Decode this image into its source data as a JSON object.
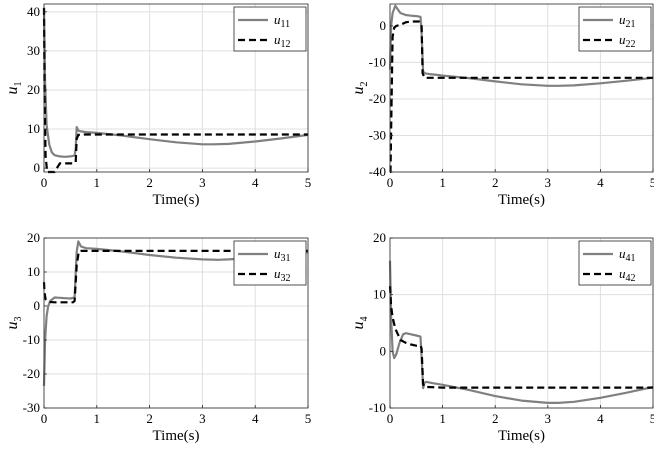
{
  "colors": {
    "solid": "#808080",
    "dashed": "#000000",
    "grid": "#dfdfdf",
    "axis": "#262626"
  },
  "chart_data": [
    {
      "type": "line",
      "title": "",
      "xlabel": "Time(s)",
      "ylabel": {
        "base": "u",
        "sub": "1"
      },
      "xlim": [
        0,
        5
      ],
      "ylim": [
        -1,
        42
      ],
      "xticks": [
        0,
        1,
        2,
        3,
        4,
        5
      ],
      "yticks": [
        0,
        10,
        20,
        30,
        40
      ],
      "grid": true,
      "legend": {
        "position": "top-right"
      },
      "series": [
        {
          "name": "u11",
          "label": {
            "base": "u",
            "sub": "11"
          },
          "style": "solid",
          "x": [
            0,
            0.02,
            0.05,
            0.1,
            0.15,
            0.2,
            0.3,
            0.4,
            0.5,
            0.58,
            0.6,
            0.62,
            0.65,
            0.7,
            0.8,
            1,
            1.5,
            2,
            2.5,
            3,
            3.2,
            3.5,
            4,
            4.5,
            5
          ],
          "y": [
            41,
            22,
            11,
            6,
            4,
            3.3,
            3,
            2.9,
            3,
            3.2,
            5,
            10.5,
            9.6,
            9.4,
            9.2,
            9,
            8.3,
            7.4,
            6.6,
            6.1,
            6.1,
            6.2,
            6.8,
            7.6,
            8.5
          ]
        },
        {
          "name": "u12",
          "label": {
            "base": "u",
            "sub": "12"
          },
          "style": "dashed",
          "x": [
            0,
            0.01,
            0.03,
            0.06,
            0.1,
            0.2,
            0.3,
            0.4,
            0.5,
            0.55,
            0.6,
            0.62,
            0.65,
            0.7,
            1,
            2,
            3,
            4,
            5
          ],
          "y": [
            41,
            20,
            3,
            -1,
            -1,
            -1,
            1.2,
            1.2,
            1.2,
            1.2,
            1.5,
            7.5,
            8.5,
            8.6,
            8.6,
            8.6,
            8.6,
            8.6,
            8.6
          ]
        }
      ]
    },
    {
      "type": "line",
      "title": "",
      "xlabel": "Time(s)",
      "ylabel": {
        "base": "u",
        "sub": "2"
      },
      "xlim": [
        0,
        5
      ],
      "ylim": [
        -40,
        6
      ],
      "xticks": [
        0,
        1,
        2,
        3,
        4,
        5
      ],
      "yticks": [
        -40,
        -30,
        -20,
        -10,
        0
      ],
      "grid": true,
      "legend": {
        "position": "top-right"
      },
      "series": [
        {
          "name": "u21",
          "label": {
            "base": "u",
            "sub": "21"
          },
          "style": "solid",
          "x": [
            0,
            0.02,
            0.05,
            0.1,
            0.15,
            0.2,
            0.3,
            0.4,
            0.5,
            0.58,
            0.6,
            0.63,
            0.67,
            0.75,
            0.9,
            1,
            1.5,
            2,
            2.5,
            3,
            3.2,
            3.5,
            4,
            4.5,
            5
          ],
          "y": [
            -12,
            0,
            3.5,
            5.5,
            4.5,
            3.5,
            3,
            2.8,
            2.7,
            2.5,
            -2,
            -12.5,
            -13,
            -13.2,
            -13.4,
            -13.6,
            -14.3,
            -15.2,
            -16,
            -16.4,
            -16.4,
            -16.3,
            -15.7,
            -15,
            -14.2
          ]
        },
        {
          "name": "u22",
          "label": {
            "base": "u",
            "sub": "22"
          },
          "style": "dashed",
          "x": [
            0,
            0.01,
            0.03,
            0.05,
            0.08,
            0.12,
            0.2,
            0.3,
            0.4,
            0.5,
            0.55,
            0.6,
            0.62,
            0.66,
            0.7,
            1,
            2,
            3,
            4,
            5
          ],
          "y": [
            -40,
            -40,
            -20,
            -3,
            -0.5,
            0,
            0.3,
            1,
            1.2,
            1.2,
            1.2,
            0.5,
            -13,
            -14.2,
            -14.2,
            -14.2,
            -14.2,
            -14.2,
            -14.2,
            -14.2
          ]
        }
      ]
    },
    {
      "type": "line",
      "title": "",
      "xlabel": "Time(s)",
      "ylabel": {
        "base": "u",
        "sub": "3"
      },
      "xlim": [
        0,
        5
      ],
      "ylim": [
        -30,
        20
      ],
      "xticks": [
        0,
        1,
        2,
        3,
        4,
        5
      ],
      "yticks": [
        -30,
        -20,
        -10,
        0,
        10,
        20
      ],
      "grid": true,
      "legend": {
        "position": "top-right"
      },
      "series": [
        {
          "name": "u31",
          "label": {
            "base": "u",
            "sub": "31"
          },
          "style": "solid",
          "x": [
            0,
            0.02,
            0.05,
            0.08,
            0.12,
            0.2,
            0.3,
            0.4,
            0.5,
            0.58,
            0.62,
            0.65,
            0.7,
            0.8,
            1,
            1.5,
            2,
            2.5,
            3,
            3.3,
            3.5,
            4,
            4.5,
            5
          ],
          "y": [
            -23.5,
            -10,
            -3,
            0,
            1.5,
            2.5,
            2.4,
            2.3,
            2.2,
            2.5,
            16,
            19,
            17.5,
            17,
            16.8,
            16,
            15,
            14.2,
            13.7,
            13.6,
            13.7,
            14.2,
            15,
            15.8
          ]
        },
        {
          "name": "u32",
          "label": {
            "base": "u",
            "sub": "32"
          },
          "style": "dashed",
          "x": [
            0,
            0.01,
            0.03,
            0.06,
            0.1,
            0.2,
            0.3,
            0.4,
            0.5,
            0.55,
            0.58,
            0.62,
            0.66,
            0.7,
            1,
            2,
            3,
            4,
            5
          ],
          "y": [
            7,
            4,
            2,
            1.5,
            1.2,
            1.1,
            1.1,
            1.1,
            1.1,
            1.1,
            1.5,
            12,
            16,
            16.2,
            16.2,
            16.2,
            16.2,
            16.2,
            16.2
          ]
        }
      ]
    },
    {
      "type": "line",
      "title": "",
      "xlabel": "Time(s)",
      "ylabel": {
        "base": "u",
        "sub": "4"
      },
      "xlim": [
        0,
        5
      ],
      "ylim": [
        -10,
        20
      ],
      "xticks": [
        0,
        1,
        2,
        3,
        4,
        5
      ],
      "yticks": [
        -10,
        0,
        10,
        20
      ],
      "grid": true,
      "legend": {
        "position": "top-right"
      },
      "series": [
        {
          "name": "u41",
          "label": {
            "base": "u",
            "sub": "41"
          },
          "style": "solid",
          "x": [
            0,
            0.02,
            0.05,
            0.08,
            0.12,
            0.18,
            0.25,
            0.3,
            0.4,
            0.5,
            0.58,
            0.6,
            0.63,
            0.66,
            0.7,
            0.8,
            1,
            1.5,
            2,
            2.5,
            3,
            3.2,
            3.5,
            4,
            4.5,
            5
          ],
          "y": [
            16,
            6,
            0,
            -1.2,
            -0.5,
            1.5,
            3,
            3.2,
            3,
            2.8,
            2.6,
            -1,
            -6.5,
            -5.5,
            -5.4,
            -5.6,
            -5.9,
            -6.8,
            -7.9,
            -8.7,
            -9.1,
            -9.1,
            -8.9,
            -8.2,
            -7.3,
            -6.3
          ]
        },
        {
          "name": "u42",
          "label": {
            "base": "u",
            "sub": "42"
          },
          "style": "dashed",
          "x": [
            0,
            0.02,
            0.05,
            0.1,
            0.15,
            0.2,
            0.3,
            0.4,
            0.5,
            0.58,
            0.6,
            0.63,
            0.66,
            0.7,
            1,
            2,
            3,
            4,
            5
          ],
          "y": [
            11.5,
            8,
            6,
            4,
            3,
            2,
            1.5,
            1.2,
            1,
            1,
            0.5,
            -5.8,
            -6.3,
            -6.3,
            -6.4,
            -6.4,
            -6.4,
            -6.4,
            -6.4
          ]
        }
      ]
    }
  ]
}
